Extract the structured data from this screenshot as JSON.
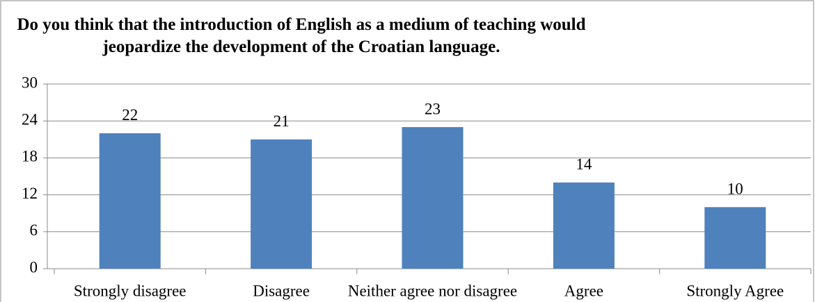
{
  "chart_data": {
    "type": "bar",
    "title": "Do you think that the introduction of English as a medium of teaching would jeopardize the development of the Croatian language.",
    "categories": [
      "Strongly disagree",
      "Disagree",
      "Neither agree nor disagree",
      "Agree",
      "Strongly Agree"
    ],
    "values": [
      22,
      21,
      23,
      14,
      10
    ],
    "color": "#4f81bd",
    "ylim": [
      0,
      30
    ],
    "yticks": [
      0,
      6,
      12,
      18,
      24,
      30
    ],
    "grid": true
  }
}
